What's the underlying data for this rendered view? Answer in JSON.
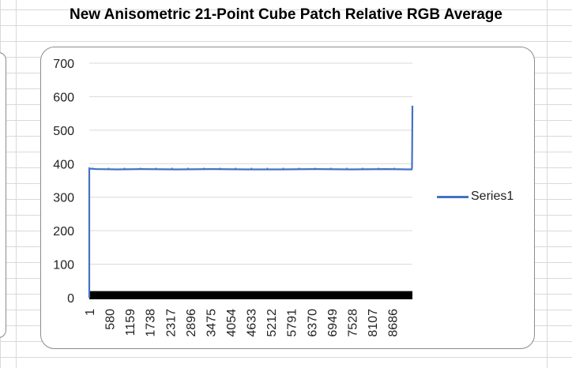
{
  "chart_data": {
    "type": "line",
    "title": "New Anisometric 21-Point Cube Patch Relative RGB Average",
    "xlabel": "",
    "ylabel": "",
    "ylim": [
      0,
      700
    ],
    "yticks": [
      0,
      100,
      200,
      300,
      400,
      500,
      600,
      700
    ],
    "xlim": [
      1,
      9261
    ],
    "xticks": [
      1,
      580,
      1159,
      1738,
      2317,
      2896,
      3475,
      4054,
      4633,
      5212,
      5791,
      6370,
      6949,
      7528,
      8107,
      8686
    ],
    "grid": true,
    "legend_position": "right",
    "series": [
      {
        "name": "Series1",
        "color": "#4472c4",
        "x": [
          1,
          2,
          3,
          20,
          200,
          800,
          1500,
          2500,
          3500,
          4500,
          5500,
          6500,
          7500,
          8500,
          9100,
          9240,
          9250,
          9255,
          9258,
          9261
        ],
        "y": [
          0,
          384,
          386,
          385,
          384,
          383,
          384,
          383,
          384,
          383,
          383,
          384,
          383,
          384,
          383,
          383,
          390,
          450,
          520,
          573
        ]
      }
    ],
    "noise_band": {
      "low": 0,
      "high": 15,
      "color": "#000000"
    }
  },
  "colors": {
    "series": "#4472c4",
    "gridline": "#d9d9d9",
    "axis_text": "#000000"
  }
}
